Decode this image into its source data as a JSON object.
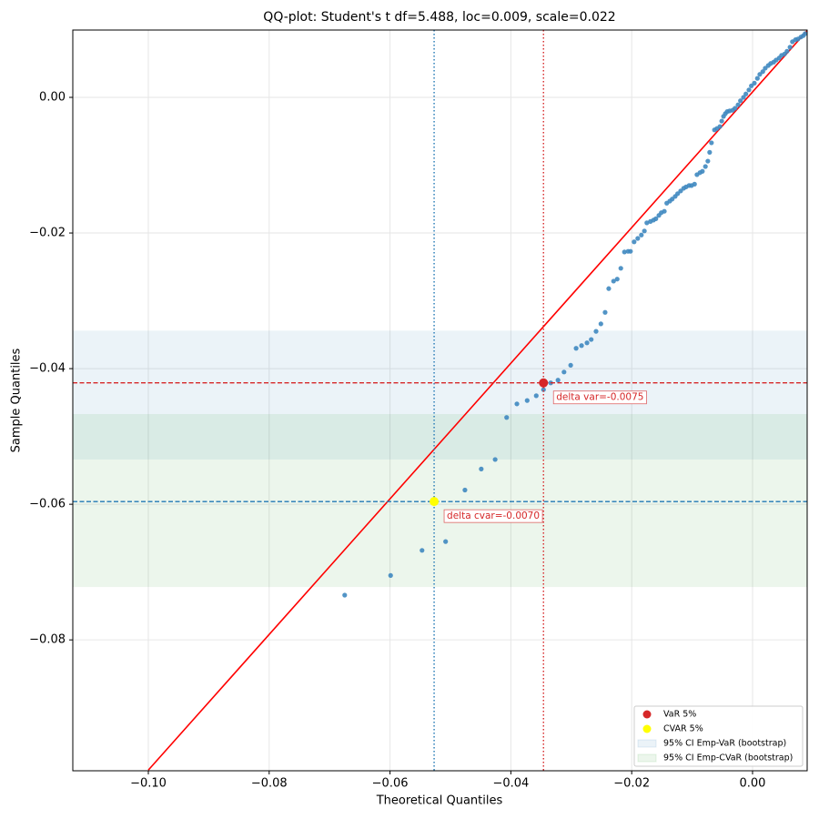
{
  "chart_data": {
    "type": "scatter",
    "title": "QQ-plot: Student's t df=5.488, loc=0.009, scale=0.022",
    "x_label": "Theoretical Quantiles",
    "y_label": "Sample Quantiles",
    "xlim": [
      -0.1125,
      0.00904
    ],
    "ylim": [
      -0.0993,
      0.00993
    ],
    "xticks": [
      {
        "value": -0.1,
        "label": "−0.10"
      },
      {
        "value": -0.08,
        "label": "−0.08"
      },
      {
        "value": -0.06,
        "label": "−0.06"
      },
      {
        "value": -0.04,
        "label": "−0.04"
      },
      {
        "value": -0.02,
        "label": "−0.02"
      },
      {
        "value": 0.0,
        "label": "0.00"
      }
    ],
    "yticks": [
      {
        "value": -0.08,
        "label": "−0.08"
      },
      {
        "value": -0.06,
        "label": "−0.06"
      },
      {
        "value": -0.04,
        "label": "−0.04"
      },
      {
        "value": -0.02,
        "label": "−0.02"
      },
      {
        "value": 0.0,
        "label": "0.00"
      }
    ],
    "grid": true,
    "legend": "lower right",
    "points": {
      "color": "#3f88c0",
      "x": [
        -0.0675,
        -0.0599,
        -0.0547,
        -0.0508,
        -0.0476,
        -0.0449,
        -0.0426,
        -0.0407,
        -0.039,
        -0.0373,
        -0.0358,
        -0.0346,
        -0.0334,
        -0.0322,
        -0.0312,
        -0.0301,
        -0.0292,
        -0.0283,
        -0.0274,
        -0.0267,
        -0.0259,
        -0.0251,
        -0.0244,
        -0.0238,
        -0.023,
        -0.0224,
        -0.0218,
        -0.0212,
        -0.0206,
        -0.0202,
        -0.0196,
        -0.019,
        -0.0184,
        -0.0179,
        -0.0175,
        -0.0169,
        -0.0164,
        -0.016,
        -0.0155,
        -0.0151,
        -0.0146,
        -0.0142,
        -0.0137,
        -0.0133,
        -0.0128,
        -0.0124,
        -0.0119,
        -0.0114,
        -0.011,
        -0.0105,
        -0.0101,
        -0.0096,
        -0.0092,
        -0.0087,
        -0.0083,
        -0.0078,
        -0.0074,
        -0.0071,
        -0.0068,
        -0.0063,
        -0.0059,
        -0.0054,
        -0.0051,
        -0.0048,
        -0.0045,
        -0.0042,
        -0.0038,
        -0.0033,
        -0.0029,
        -0.0024,
        -0.002,
        -0.0015,
        -0.0011,
        -0.0006,
        -0.0002,
        0.0003,
        0.0008,
        0.0012,
        0.0017,
        0.0021,
        0.0026,
        0.003,
        0.0035,
        0.0039,
        0.0044,
        0.0048,
        0.0053,
        0.0057,
        0.0062,
        0.0066,
        0.0071,
        0.0075,
        0.008,
        0.0084,
        0.0087
      ],
      "y": [
        -0.0734,
        -0.0705,
        -0.0668,
        -0.0655,
        -0.0579,
        -0.0548,
        -0.0534,
        -0.0472,
        -0.0452,
        -0.0447,
        -0.044,
        -0.0431,
        -0.0421,
        -0.0417,
        -0.0405,
        -0.0395,
        -0.037,
        -0.0366,
        -0.0362,
        -0.0357,
        -0.0345,
        -0.0334,
        -0.0317,
        -0.0282,
        -0.0271,
        -0.0268,
        -0.0252,
        -0.0228,
        -0.0227,
        -0.0227,
        -0.0213,
        -0.0208,
        -0.0203,
        -0.0197,
        -0.0185,
        -0.0183,
        -0.0181,
        -0.0179,
        -0.0174,
        -0.017,
        -0.0168,
        -0.0156,
        -0.0153,
        -0.015,
        -0.0146,
        -0.0142,
        -0.0138,
        -0.0134,
        -0.0132,
        -0.013,
        -0.013,
        -0.0128,
        -0.0114,
        -0.0111,
        -0.0109,
        -0.0102,
        -0.0094,
        -0.0081,
        -0.0067,
        -0.0048,
        -0.0046,
        -0.0043,
        -0.0035,
        -0.0028,
        -0.0024,
        -0.0021,
        -0.002,
        -0.0019,
        -0.0016,
        -0.0011,
        -0.0005,
        0.0,
        0.0005,
        0.0011,
        0.0017,
        0.0021,
        0.0028,
        0.0034,
        0.0038,
        0.0043,
        0.0047,
        0.005,
        0.0052,
        0.0055,
        0.0058,
        0.0062,
        0.0064,
        0.0068,
        0.0074,
        0.0082,
        0.0085,
        0.0086,
        0.0089,
        0.0091,
        0.0094
      ]
    },
    "ref_line": {
      "color": "#ff0000",
      "x": [
        -0.1,
        0.009
      ],
      "y": [
        -0.0992,
        0.0098
      ]
    },
    "markers": [
      {
        "name": "VaR 5%",
        "color": "#d62728",
        "x": -0.0346,
        "y": -0.0421,
        "annotation": "delta var=-0.0075"
      },
      {
        "name": "CVAR 5%",
        "color": "#ffff00",
        "x": -0.0527,
        "y": -0.0596,
        "annotation": "delta cvar=-0.0070"
      }
    ],
    "vlines": [
      {
        "x": -0.0346,
        "color": "#d62728"
      },
      {
        "x": -0.0527,
        "color": "#1f77b4"
      }
    ],
    "hlines": [
      {
        "y": -0.0421,
        "color": "#d62728"
      },
      {
        "y": -0.0596,
        "color": "#1f77b4"
      }
    ],
    "bands": [
      {
        "name": "95% CI Emp-VaR (bootstrap)",
        "color": "#1f77b4",
        "y": [
          -0.0534,
          -0.0344
        ]
      },
      {
        "name": "95% CI Emp-CVaR (bootstrap)",
        "color": "#2ca02c",
        "y": [
          -0.0722,
          -0.0467
        ]
      }
    ]
  }
}
